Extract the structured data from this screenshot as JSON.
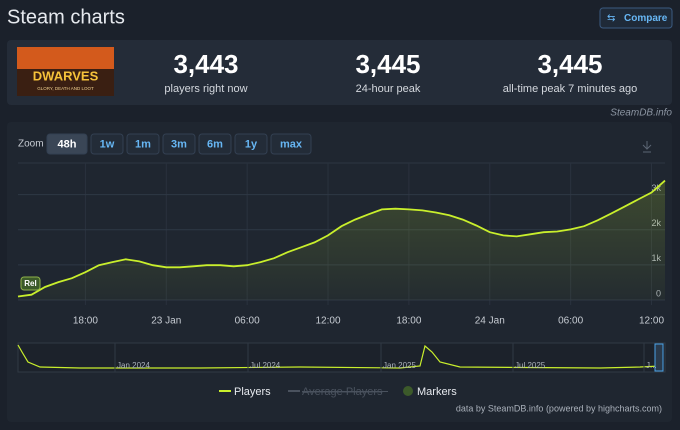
{
  "header": {
    "title": "Steam charts",
    "compare": "Compare"
  },
  "game": {
    "logo": "DWARVES",
    "tagline": "GLORY, DEATH AND LOOT"
  },
  "stats": [
    {
      "value": "3,443",
      "label": "players right now"
    },
    {
      "value": "3,445",
      "label": "24-hour peak"
    },
    {
      "value": "3,445",
      "label": "all-time peak 7 minutes ago"
    }
  ],
  "source": "SteamDB.info",
  "zoom": {
    "label": "Zoom",
    "options": [
      "48h",
      "1w",
      "1m",
      "3m",
      "6m",
      "1y",
      "max"
    ],
    "active": "48h"
  },
  "chart_data": {
    "type": "line",
    "categories": [
      null,
      null,
      null,
      null,
      null,
      "18:00",
      null,
      null,
      null,
      null,
      null,
      "23 Jan",
      null,
      null,
      null,
      null,
      null,
      "06:00",
      null,
      null,
      null,
      null,
      null,
      "12:00",
      null,
      null,
      null,
      null,
      null,
      "18:00",
      null,
      null,
      null,
      null,
      null,
      "24 Jan",
      null,
      null,
      null,
      null,
      null,
      "06:00",
      null,
      null,
      null,
      null,
      null,
      "12:00",
      null
    ],
    "series": [
      {
        "name": "Players",
        "color": "#c9ef2c",
        "values": [
          100,
          150,
          370,
          510,
          620,
          790,
          990,
          1080,
          1160,
          1100,
          990,
          930,
          930,
          960,
          990,
          990,
          960,
          990,
          1080,
          1190,
          1360,
          1500,
          1640,
          1840,
          2100,
          2290,
          2440,
          2580,
          2600,
          2580,
          2550,
          2490,
          2410,
          2290,
          2120,
          1930,
          1840,
          1810,
          1870,
          1930,
          1950,
          2010,
          2100,
          2270,
          2460,
          2660,
          2860,
          3060,
          3400
        ]
      }
    ],
    "ylim": [
      0,
      3900
    ],
    "yticks": [
      0,
      {
        "value": 1000,
        "label": "1k"
      },
      {
        "value": 2000,
        "label": "2k"
      },
      {
        "value": 3000,
        "label": "3k"
      }
    ],
    "grid": true,
    "markers": [
      {
        "label": "Rel"
      }
    ],
    "legend_items": [
      {
        "name": "Average Players",
        "hidden": true
      },
      {
        "name": "Markers"
      }
    ]
  },
  "navigator": {
    "labels": [
      "Jan 2024",
      "Jul 2024",
      "Jan 2025",
      "Jul 2025",
      "J..."
    ]
  },
  "credits": "data by SteamDB.info (powered by highcharts.com)"
}
